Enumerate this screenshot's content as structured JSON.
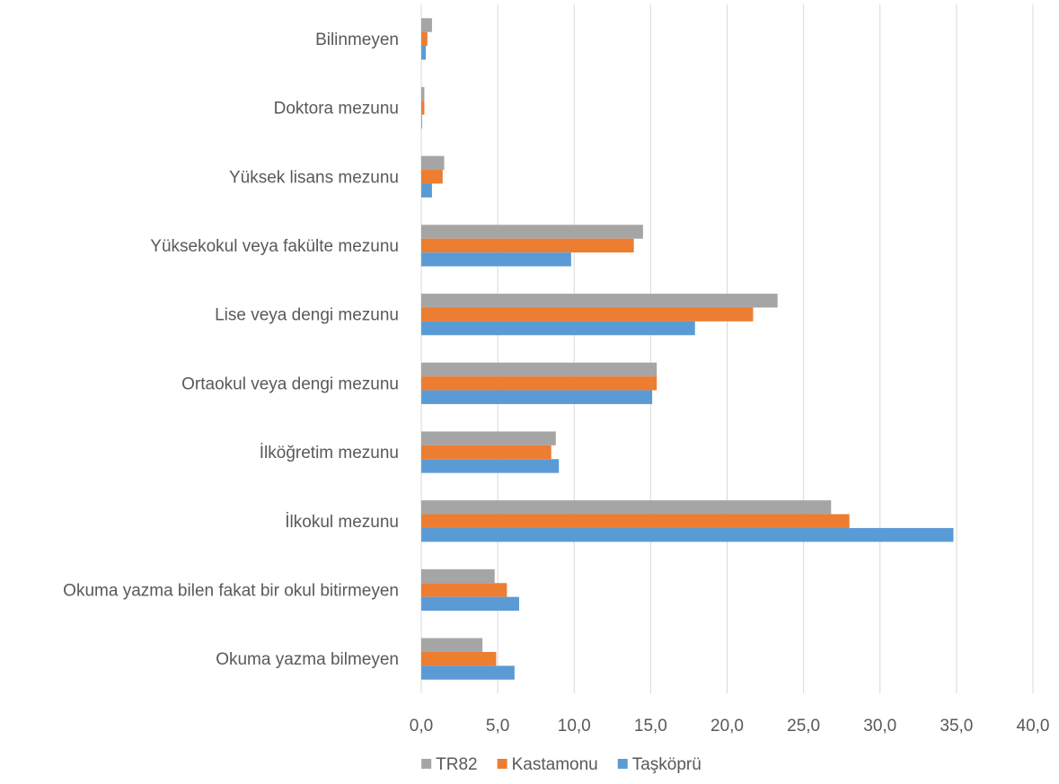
{
  "chart_data": {
    "type": "bar",
    "orientation": "horizontal",
    "categories": [
      "Bilinmeyen",
      "Doktora mezunu",
      "Yüksek lisans mezunu",
      "Yüksekokul veya fakülte mezunu",
      "Lise veya dengi mezunu",
      "Ortaokul veya dengi mezunu",
      "İlköğretim mezunu",
      "İlkokul mezunu",
      "Okuma yazma bilen fakat bir okul bitirmeyen",
      "Okuma yazma bilmeyen"
    ],
    "series": [
      {
        "name": "TR82",
        "color": "#a5a5a5",
        "values": [
          0.7,
          0.2,
          1.5,
          14.5,
          23.3,
          15.4,
          8.8,
          26.8,
          4.8,
          4.0
        ]
      },
      {
        "name": "Kastamonu",
        "color": "#ed7d31",
        "values": [
          0.4,
          0.2,
          1.4,
          13.9,
          21.7,
          15.4,
          8.5,
          28.0,
          5.6,
          4.9
        ]
      },
      {
        "name": "Taşköprü",
        "color": "#5b9bd5",
        "values": [
          0.3,
          0.05,
          0.7,
          9.8,
          17.9,
          15.1,
          9.0,
          34.8,
          6.4,
          6.1
        ]
      }
    ],
    "x_ticks": [
      "0,0",
      "5,0",
      "10,0",
      "15,0",
      "20,0",
      "25,0",
      "30,0",
      "35,0",
      "40,0"
    ],
    "xlim": [
      0,
      40
    ],
    "grid": true,
    "legend_position": "bottom",
    "title": "",
    "xlabel": "",
    "ylabel": ""
  }
}
